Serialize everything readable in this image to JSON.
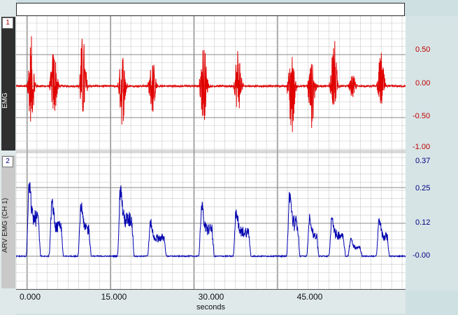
{
  "channels": [
    {
      "number": "1",
      "label": "EMG"
    },
    {
      "number": "2",
      "label": "ARV EMG (CH 1)"
    }
  ],
  "colors": {
    "ch1": "#e00000",
    "ch2": "#0000b0",
    "grid": "#c8c8c8",
    "divider": "#8a8a8a"
  },
  "x_axis": {
    "ticks": [
      "0.000",
      "15.000",
      "30.000",
      "45.000"
    ],
    "unit": "seconds"
  },
  "ch1_scale": [
    "0.50",
    "0.00",
    "-0.50",
    "-1.00"
  ],
  "ch2_scale": [
    "0.37",
    "0.25",
    "0.12",
    "-0.00"
  ],
  "chart_data": [
    {
      "type": "line",
      "ylabel": "EMG",
      "xlim": [
        -2,
        68
      ],
      "ylim": [
        -1.0,
        1.1
      ],
      "series": [
        {
          "bursts": [
            {
              "t": 0.4,
              "amp": 0.8,
              "min": -0.6
            },
            {
              "t": 4.5,
              "amp": 0.65,
              "min": -0.5
            },
            {
              "t": 9.7,
              "amp": 0.85,
              "min": -0.55
            },
            {
              "t": 16.8,
              "amp": 0.6,
              "min": -0.65
            },
            {
              "t": 22.2,
              "amp": 0.45,
              "min": -0.45
            },
            {
              "t": 31.4,
              "amp": 0.73,
              "min": -0.6
            },
            {
              "t": 37.6,
              "amp": 0.7,
              "min": -0.45
            },
            {
              "t": 47.2,
              "amp": 0.55,
              "min": -0.85
            },
            {
              "t": 50.8,
              "amp": 0.4,
              "min": -0.7
            },
            {
              "t": 54.8,
              "amp": 0.82,
              "min": -0.4
            },
            {
              "t": 58.2,
              "amp": 0.18,
              "min": -0.2
            },
            {
              "t": 63.3,
              "amp": 0.55,
              "min": -0.35
            }
          ]
        }
      ]
    },
    {
      "type": "line",
      "ylabel": "ARV EMG (CH 1)",
      "xlim": [
        -2,
        68
      ],
      "ylim": [
        -0.12,
        0.37
      ],
      "series": [
        {
          "bursts": [
            {
              "t": 0.4,
              "peak": 0.25,
              "width": 2.0
            },
            {
              "t": 4.5,
              "peak": 0.19,
              "width": 2.0
            },
            {
              "t": 9.7,
              "peak": 0.18,
              "width": 1.8
            },
            {
              "t": 16.8,
              "peak": 0.24,
              "width": 2.4
            },
            {
              "t": 22.2,
              "peak": 0.12,
              "width": 2.8
            },
            {
              "t": 31.4,
              "peak": 0.18,
              "width": 2.2
            },
            {
              "t": 37.6,
              "peak": 0.16,
              "width": 2.6
            },
            {
              "t": 47.2,
              "peak": 0.22,
              "width": 1.8
            },
            {
              "t": 50.8,
              "peak": 0.14,
              "width": 1.6
            },
            {
              "t": 54.8,
              "peak": 0.14,
              "width": 2.4
            },
            {
              "t": 58.2,
              "peak": 0.06,
              "width": 2.0
            },
            {
              "t": 63.3,
              "peak": 0.13,
              "width": 1.8
            }
          ]
        }
      ]
    }
  ]
}
